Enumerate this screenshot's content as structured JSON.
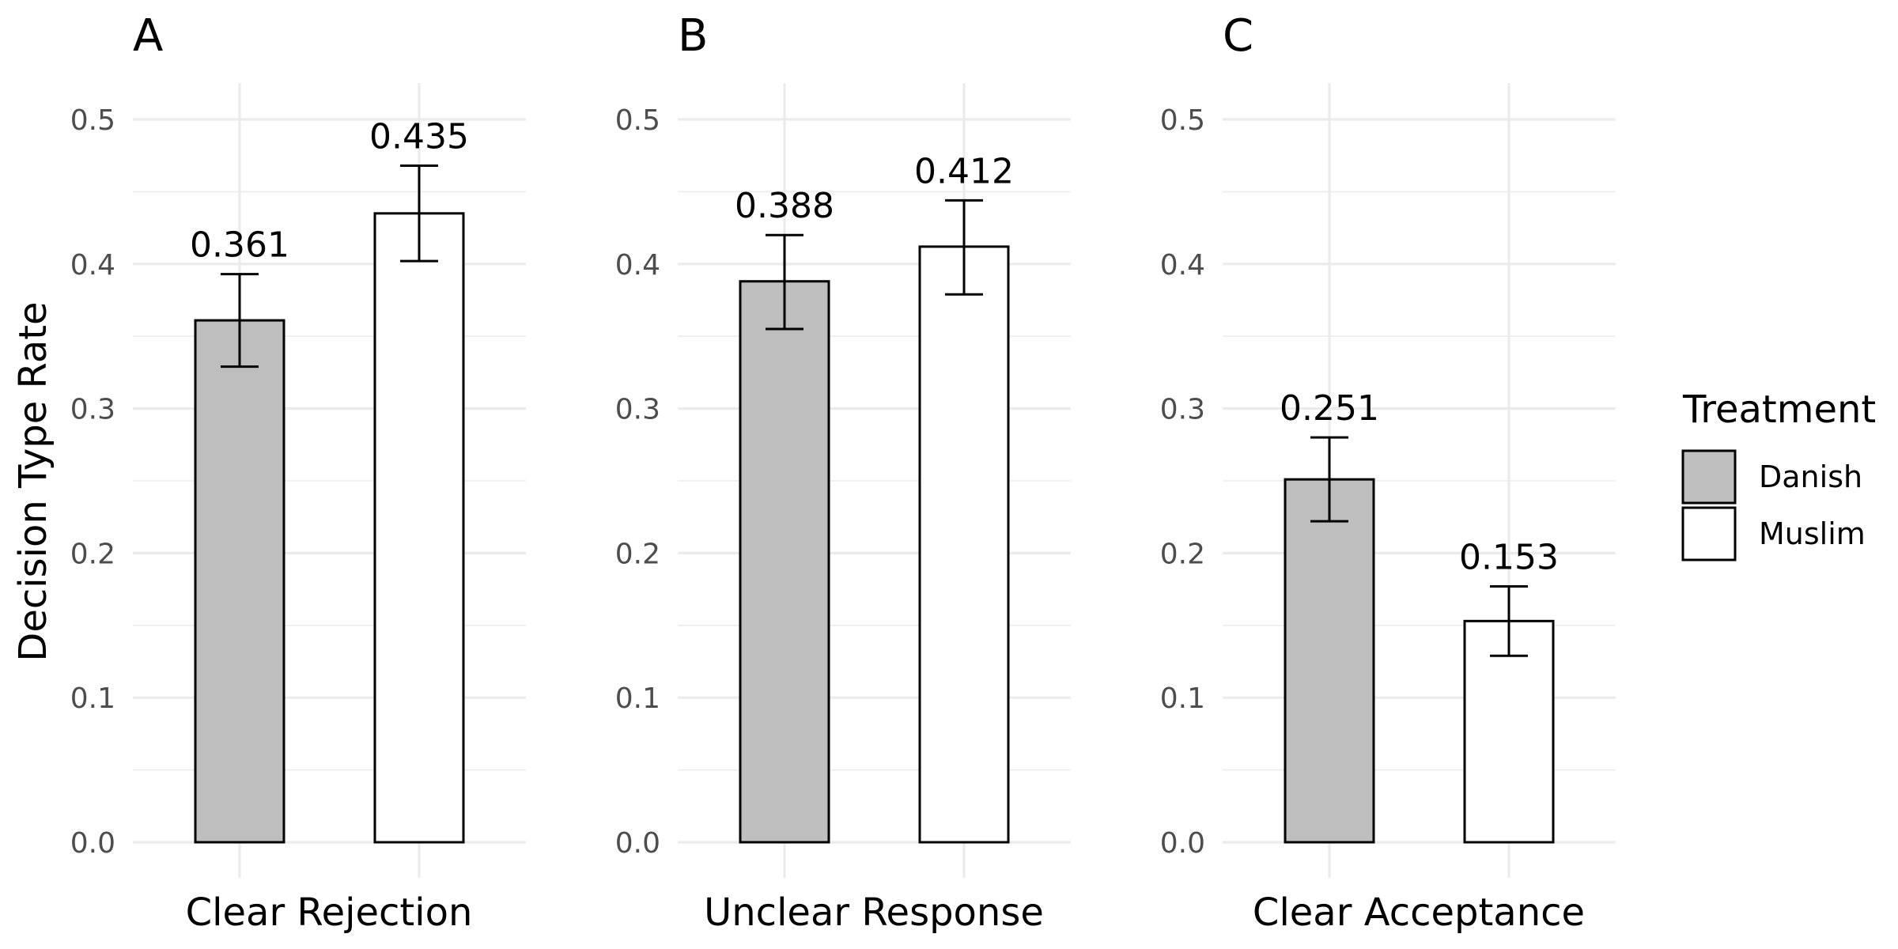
{
  "chart_data": {
    "type": "bar",
    "ylabel": "Decision Type Rate",
    "ylim": [
      0,
      0.52
    ],
    "yticks": [
      "0.0",
      "0.1",
      "0.2",
      "0.3",
      "0.4",
      "0.5"
    ],
    "grid": true,
    "legend": {
      "title": "Treatment",
      "position": "right",
      "entries": [
        {
          "name": "Danish",
          "color": "#bebebe"
        },
        {
          "name": "Muslim",
          "color": "#ffffff"
        }
      ]
    },
    "panels": [
      {
        "letter": "A",
        "category": "Clear Rejection",
        "bars": [
          {
            "group": "Danish",
            "value": 0.361,
            "label": "0.361",
            "err_low": 0.329,
            "err_high": 0.393
          },
          {
            "group": "Muslim",
            "value": 0.435,
            "label": "0.435",
            "err_low": 0.402,
            "err_high": 0.468
          }
        ]
      },
      {
        "letter": "B",
        "category": "Unclear Response",
        "bars": [
          {
            "group": "Danish",
            "value": 0.388,
            "label": "0.388",
            "err_low": 0.355,
            "err_high": 0.42
          },
          {
            "group": "Muslim",
            "value": 0.412,
            "label": "0.412",
            "err_low": 0.379,
            "err_high": 0.444
          }
        ]
      },
      {
        "letter": "C",
        "category": "Clear Acceptance",
        "bars": [
          {
            "group": "Danish",
            "value": 0.251,
            "label": "0.251",
            "err_low": 0.222,
            "err_high": 0.28
          },
          {
            "group": "Muslim",
            "value": 0.153,
            "label": "0.153",
            "err_low": 0.129,
            "err_high": 0.177
          }
        ]
      }
    ]
  }
}
